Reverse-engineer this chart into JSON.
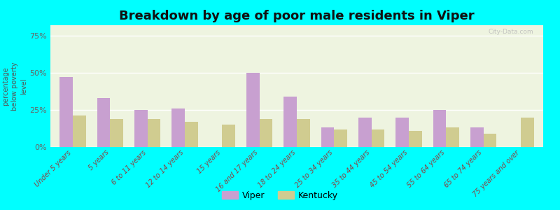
{
  "title": "Breakdown by age of poor male residents in Viper",
  "categories": [
    "Under 5 years",
    "5 years",
    "6 to 11 years",
    "12 to 14 years",
    "15 years",
    "16 and 17 years",
    "18 to 24 years",
    "25 to 34 years",
    "35 to 44 years",
    "45 to 54 years",
    "55 to 64 years",
    "65 to 74 years",
    "75 years and over"
  ],
  "viper_values": [
    47,
    33,
    25,
    26,
    0,
    50,
    34,
    13,
    20,
    20,
    25,
    13,
    0
  ],
  "kentucky_values": [
    21,
    19,
    19,
    17,
    15,
    19,
    19,
    12,
    12,
    11,
    13,
    9,
    20
  ],
  "viper_color": "#c8a0d0",
  "kentucky_color": "#d0cc90",
  "ylabel": "percentage\nbelow poverty\nlevel",
  "yticks": [
    0,
    25,
    50,
    75
  ],
  "ytick_labels": [
    "0%",
    "25%",
    "50%",
    "75%"
  ],
  "ylim": [
    0,
    82
  ],
  "outer_background": "#00ffff",
  "plot_bg_color": "#eef4e0",
  "bar_width": 0.35,
  "title_fontsize": 13,
  "tick_fontsize": 7,
  "ytick_fontsize": 8,
  "watermark": "City-Data.com"
}
